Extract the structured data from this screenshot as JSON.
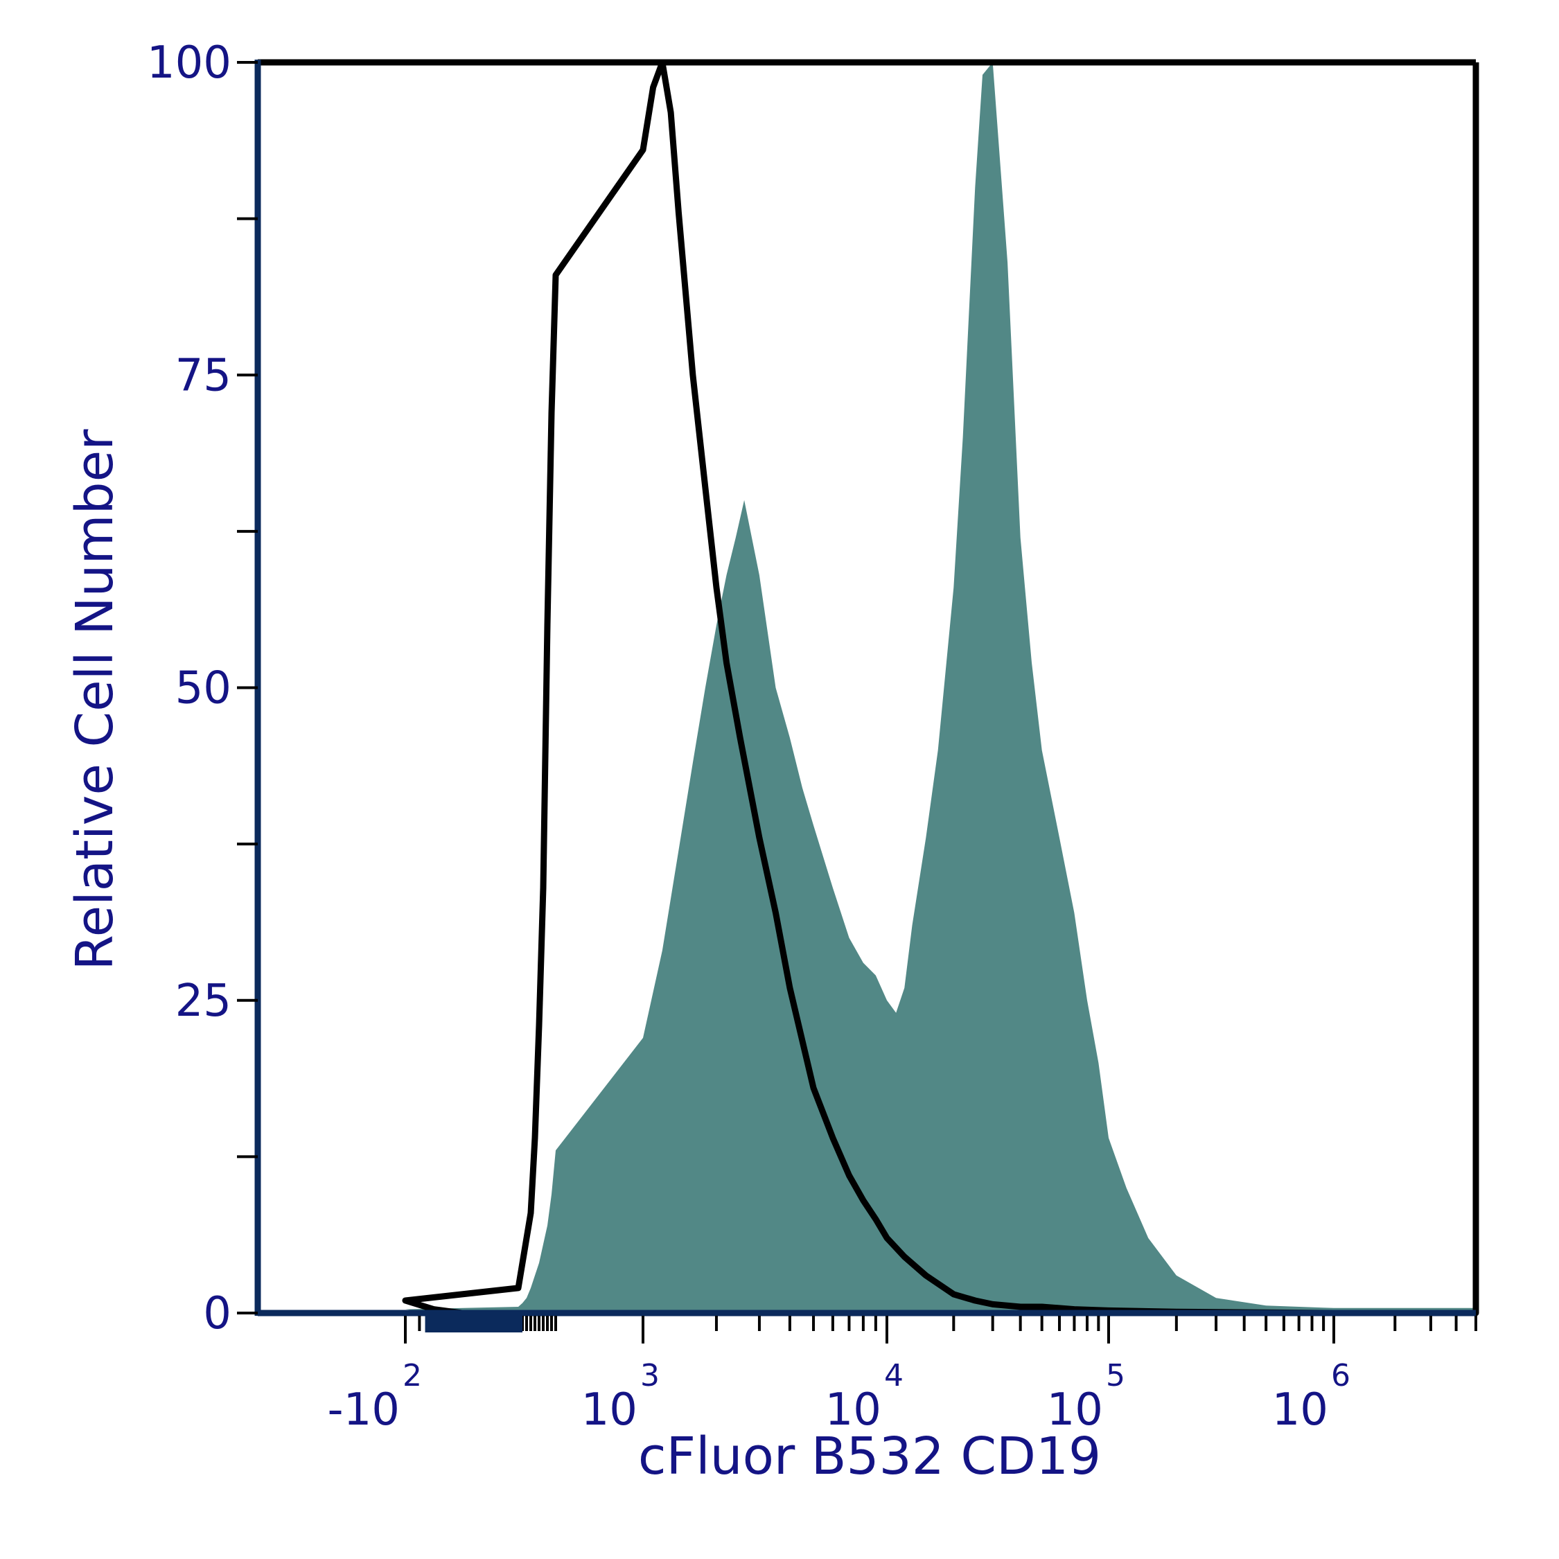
{
  "chart_data": {
    "type": "area",
    "xlabel": "cFluor B532 CD19",
    "ylabel": "Relative Cell Number",
    "xscale": "biexponential",
    "xlim": [
      -300,
      5000000
    ],
    "ylim": [
      0,
      100
    ],
    "y_ticks": [
      "0",
      "25",
      "50",
      "75",
      "100"
    ],
    "x_ticks": [
      {
        "base": "-10",
        "exp": "2",
        "value": -100
      },
      {
        "base": "10",
        "exp": "3",
        "value": 1000
      },
      {
        "base": "10",
        "exp": "4",
        "value": 10000
      },
      {
        "base": "10",
        "exp": "5",
        "value": 100000
      },
      {
        "base": "10",
        "exp": "6",
        "value": 1000000
      }
    ],
    "grid": false,
    "colors": {
      "filled": "#528886",
      "outline": "#000000",
      "axis_left": "#0b2a5c",
      "text": "#141485"
    },
    "series": [
      {
        "style": "filled",
        "x": [
          -300,
          -200,
          -100,
          0,
          100,
          200,
          300,
          400,
          500,
          600,
          700,
          800,
          900,
          1000,
          1200,
          1400,
          1600,
          1800,
          2000,
          2200,
          2400,
          2600,
          3000,
          3500,
          4000,
          4500,
          5000,
          6000,
          7000,
          8000,
          9000,
          10000,
          11000,
          12000,
          13000,
          15000,
          17000,
          20000,
          22000,
          25000,
          27000,
          30000,
          35000,
          40000,
          45000,
          50000,
          60000,
          70000,
          80000,
          90000,
          100000,
          120000,
          150000,
          200000,
          300000,
          500000,
          1000000,
          5000000
        ],
        "y": [
          0,
          0,
          0.3,
          0.5,
          0.8,
          1.2,
          2,
          3,
          4,
          5.5,
          7,
          9.5,
          13,
          22,
          29,
          37,
          44,
          50,
          55,
          59,
          62,
          65,
          59,
          50,
          46,
          42,
          39,
          34,
          30,
          28,
          27,
          25,
          24,
          26,
          31,
          38,
          45,
          58,
          70,
          90,
          99,
          100,
          84,
          62,
          52,
          45,
          38,
          32,
          25,
          20,
          14,
          10,
          6,
          3,
          1.2,
          0.6,
          0.4,
          0.4
        ]
      },
      {
        "style": "outline",
        "x": [
          -300,
          -200,
          -100,
          0,
          50,
          100,
          150,
          200,
          250,
          300,
          350,
          400,
          500,
          600,
          700,
          800,
          900,
          1000,
          1100,
          1200,
          1300,
          1400,
          1600,
          1800,
          2000,
          2200,
          2500,
          3000,
          3500,
          4000,
          5000,
          6000,
          7000,
          8000,
          9000,
          10000,
          12000,
          15000,
          20000,
          25000,
          30000,
          40000,
          50000,
          70000,
          100000,
          200000,
          1000000,
          5000000
        ],
        "y": [
          0,
          0.3,
          1,
          2,
          3,
          4,
          5,
          6,
          7,
          8,
          11,
          14,
          23,
          34,
          55,
          72,
          83,
          93,
          98,
          100,
          96,
          88,
          75,
          66,
          58,
          52,
          46,
          38,
          32,
          26,
          18,
          14,
          11,
          9,
          7.5,
          6,
          4.5,
          3,
          1.5,
          1,
          0.7,
          0.5,
          0.5,
          0.3,
          0.2,
          0.1,
          0,
          0
        ]
      }
    ]
  }
}
